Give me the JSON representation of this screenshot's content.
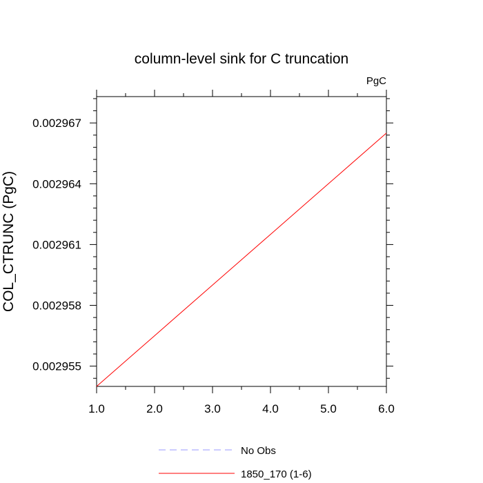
{
  "chart_data": {
    "type": "line",
    "title": "column-level sink for C truncation",
    "units_label": "PgC",
    "xlabel": "",
    "ylabel": "COL_CTRUNC  (PgC)",
    "xlim": [
      1.0,
      6.0
    ],
    "ylim": [
      0.002954,
      0.0029683
    ],
    "x_ticks": [
      1.0,
      2.0,
      3.0,
      4.0,
      5.0,
      6.0
    ],
    "x_tick_labels": [
      "1.0",
      "2.0",
      "3.0",
      "4.0",
      "5.0",
      "6.0"
    ],
    "y_ticks": [
      0.002955,
      0.002958,
      0.002961,
      0.002964,
      0.002967
    ],
    "y_tick_labels": [
      "0.002955",
      "0.002958",
      "0.002961",
      "0.002964",
      "0.002967"
    ],
    "grid": false,
    "legend_position": "bottom-center",
    "series": [
      {
        "name": "No Obs",
        "color": "#9999ff",
        "dash": "dashed",
        "x": [],
        "y": []
      },
      {
        "name": "1850_170 (1-6)",
        "color": "#ff0000",
        "dash": "solid",
        "x": [
          1.0,
          2.0,
          3.0,
          4.0,
          5.0,
          6.0
        ],
        "y": [
          0.002954,
          0.0029565,
          0.002959,
          0.0029615,
          0.002964,
          0.0029665
        ]
      }
    ]
  }
}
